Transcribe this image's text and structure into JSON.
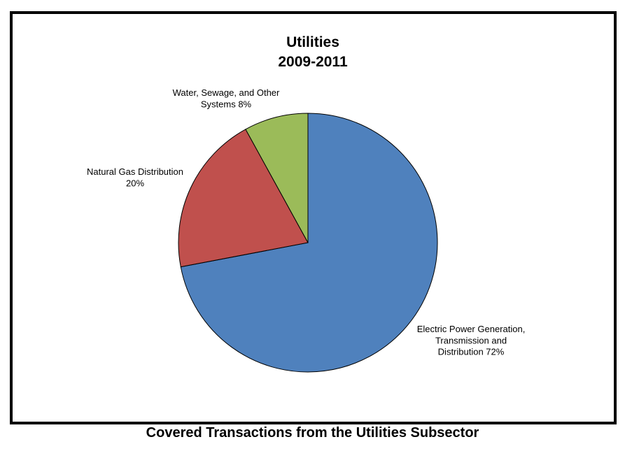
{
  "caption": "Covered Transactions from the Utilities Subsector",
  "chart_data": {
    "type": "pie",
    "title": [
      "Utilities",
      "2009-2011"
    ],
    "slices": [
      {
        "label_lines": [
          "Electric Power Generation,",
          "Transmission and",
          "Distribution 72%"
        ],
        "value": 72,
        "color": "#4F81BD"
      },
      {
        "label_lines": [
          "Natural Gas Distribution",
          "20%"
        ],
        "value": 20,
        "color": "#C0504D"
      },
      {
        "label_lines": [
          "Water, Sewage, and Other",
          "Systems 8%"
        ],
        "value": 8,
        "color": "#9BBB59"
      }
    ],
    "start_angle": "12 o'clock",
    "direction": "clockwise",
    "legend": "none"
  }
}
